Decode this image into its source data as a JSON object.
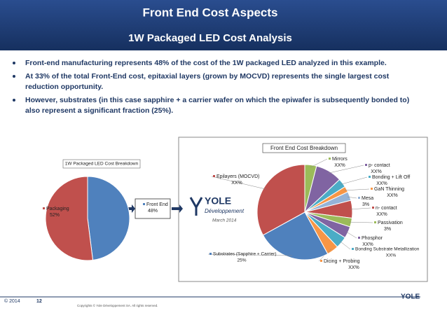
{
  "header": {
    "title": "Front End Cost Aspects",
    "subtitle": "1W Packaged LED Cost Analysis"
  },
  "bullets": [
    "Front-end manufacturing represents 48% of the cost of the 1W packaged LED analyzed in this example.",
    "At 33% of the total Front-End cost, epitaxial layers (grown by MOCVD) represents the single largest cost reduction opportunity.",
    "However, substrates (in this case sapphire + a carrier wafer on which the epiwafer is subsequently bonded to) also represent a significant fraction (25%)."
  ],
  "logo": {
    "name": "YOLE",
    "tagline": "Développement",
    "date": "March 2014"
  },
  "footer": {
    "year": "© 2014",
    "page": "12",
    "copyright": "Copyrights © Yole Développement SA. All rights reserved."
  },
  "chart_data": [
    {
      "type": "pie",
      "title": "1W Packaged LED Cost Breakdown",
      "categories": [
        "Front End",
        "Packaging"
      ],
      "values": [
        48,
        52
      ],
      "value_labels": [
        "48%",
        "52%"
      ],
      "colors": [
        "#4f81bd",
        "#c0504d"
      ]
    },
    {
      "type": "pie",
      "title": "Front End Cost Breakdown",
      "categories": [
        "Mirrors",
        "p- contact",
        "Bonding + Lift Off",
        "GaN Thinning",
        "Mesa",
        "n- contact",
        "Passivation",
        "Phosphor",
        "Bonding Substrate Metallization",
        "Dicing + Probing",
        "Substrates (Sapphire + Carrier)",
        "Epilayers (MOCVD)"
      ],
      "values": [
        4,
        9,
        3,
        2,
        3,
        6,
        3,
        4,
        4,
        4,
        25,
        33
      ],
      "value_labels": [
        "XX%",
        "XX%",
        "XX%",
        "XX%",
        "3%",
        "XX%",
        "3%",
        "XX%",
        "XX%",
        "XX%",
        "25%",
        "XX%"
      ],
      "colors": [
        "#9bbb59",
        "#8064a2",
        "#4bacc6",
        "#f79646",
        "#95b3d7",
        "#c0504d",
        "#9bbb59",
        "#8064a2",
        "#4bacc6",
        "#f79646",
        "#4f81bd",
        "#c0504d"
      ]
    }
  ]
}
